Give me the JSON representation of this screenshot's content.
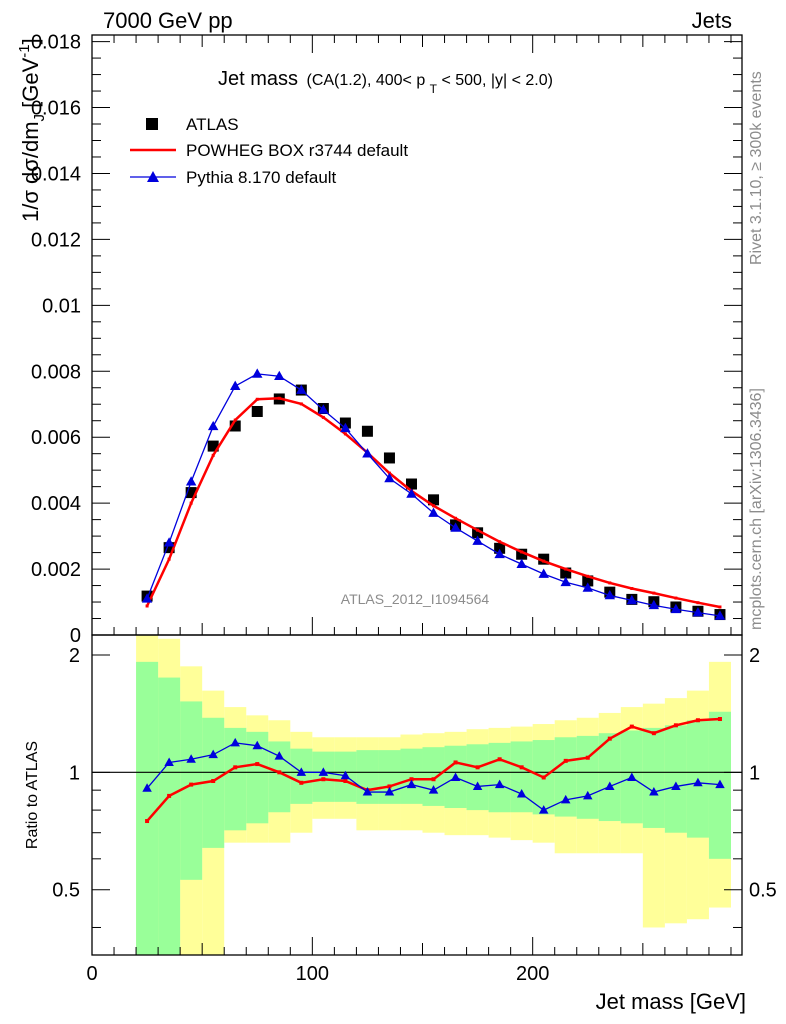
{
  "header": {
    "left": "7000 GeV pp",
    "right": "Jets",
    "title_main": "Jet mass",
    "title_detail": "(CA(1.2), 400< p",
    "title_sub": "T",
    "title_rest": " < 500, |y| < 2.0)"
  },
  "side_labels": {
    "rivet": "Rivet 3.1.10, ≥ 300k events",
    "mcplots": "mcplots.cern.ch [arXiv:1306.3436]"
  },
  "watermark": "ATLAS_2012_I1094564",
  "axes": {
    "ylabel_top": "1/σ dσ/dm",
    "ylabel_top_sub": "J",
    "ylabel_top_unit": " [GeV",
    "ylabel_top_sup": "-1",
    "ylabel_top_close": "]",
    "ylabel_bottom": "Ratio to ATLAS",
    "xlabel": "Jet mass [GeV]"
  },
  "chart_data": {
    "type": "line",
    "x": [
      25,
      35,
      45,
      55,
      65,
      75,
      85,
      95,
      105,
      115,
      125,
      135,
      145,
      155,
      165,
      175,
      185,
      195,
      205,
      215,
      225,
      235,
      245,
      255,
      265,
      275,
      285
    ],
    "xlim": [
      0,
      295
    ],
    "x_ticks": [
      0,
      100,
      200
    ],
    "ylim_top": [
      0,
      0.0182
    ],
    "y_ticks_top": [
      "0",
      "0.002",
      "0.004",
      "0.006",
      "0.008",
      "0.01",
      "0.012",
      "0.014",
      "0.016",
      "0.018"
    ],
    "ylim_ratio": [
      0.34,
      2.25
    ],
    "y_ticks_ratio": [
      "0.5",
      "1",
      "2"
    ],
    "series": [
      {
        "name": "ATLAS",
        "style": "markers",
        "marker": "square",
        "color": "#000000",
        "values": [
          0.00118,
          0.00265,
          0.00432,
          0.00573,
          0.00634,
          0.00678,
          0.00716,
          0.00743,
          0.00687,
          0.00643,
          0.00618,
          0.00537,
          0.00458,
          0.0041,
          0.00334,
          0.0031,
          0.00263,
          0.00245,
          0.0023,
          0.00188,
          0.00164,
          0.0013,
          0.00108,
          0.00101,
          0.00085,
          0.00072,
          0.00062
        ]
      },
      {
        "name": "POWHEG BOX r3744 default",
        "style": "line",
        "color": "#ff0000",
        "values": [
          0.00088,
          0.0023,
          0.004,
          0.00545,
          0.00652,
          0.00715,
          0.00718,
          0.00701,
          0.0066,
          0.0061,
          0.00553,
          0.00491,
          0.00437,
          0.00392,
          0.00354,
          0.00318,
          0.00283,
          0.00252,
          0.00224,
          0.002,
          0.00178,
          0.00158,
          0.00141,
          0.00127,
          0.00112,
          0.00098,
          0.00085
        ]
      },
      {
        "name": "Pythia 8.170 default",
        "style": "line+markers",
        "marker": "triangle",
        "color": "#0000dd",
        "values": [
          0.0011,
          0.0028,
          0.00465,
          0.00633,
          0.00755,
          0.00792,
          0.00785,
          0.00743,
          0.00683,
          0.00627,
          0.0055,
          0.00475,
          0.00428,
          0.0037,
          0.00325,
          0.00285,
          0.00245,
          0.00215,
          0.00185,
          0.0016,
          0.00143,
          0.0012,
          0.00105,
          0.0009,
          0.00078,
          0.00068,
          0.00058
        ]
      }
    ],
    "ratio": {
      "reference": 1,
      "band_green_upper": [
        1.92,
        1.75,
        1.52,
        1.38,
        1.3,
        1.27,
        1.2,
        1.15,
        1.13,
        1.13,
        1.14,
        1.14,
        1.15,
        1.16,
        1.17,
        1.18,
        1.19,
        1.2,
        1.21,
        1.23,
        1.24,
        1.26,
        1.28,
        1.3,
        1.32,
        1.36,
        1.43
      ],
      "band_green_lower": [
        0.3,
        0.3,
        0.53,
        0.64,
        0.71,
        0.74,
        0.79,
        0.83,
        0.84,
        0.84,
        0.83,
        0.83,
        0.83,
        0.82,
        0.81,
        0.8,
        0.79,
        0.79,
        0.78,
        0.77,
        0.76,
        0.75,
        0.74,
        0.72,
        0.7,
        0.68,
        0.6
      ],
      "band_yellow_upper": [
        2.35,
        2.2,
        1.87,
        1.62,
        1.47,
        1.4,
        1.36,
        1.27,
        1.23,
        1.23,
        1.23,
        1.23,
        1.25,
        1.26,
        1.27,
        1.29,
        1.3,
        1.31,
        1.33,
        1.36,
        1.38,
        1.42,
        1.47,
        1.5,
        1.55,
        1.62,
        1.92
      ],
      "band_yellow_lower": [
        0.3,
        0.3,
        0.3,
        0.3,
        0.66,
        0.66,
        0.66,
        0.7,
        0.76,
        0.76,
        0.71,
        0.71,
        0.71,
        0.7,
        0.69,
        0.69,
        0.68,
        0.67,
        0.66,
        0.62,
        0.62,
        0.62,
        0.62,
        0.4,
        0.41,
        0.42,
        0.45
      ],
      "series": [
        {
          "name": "POWHEG BOX r3744 default",
          "color": "#ff0000",
          "marker": "small-square",
          "values": [
            0.75,
            0.87,
            0.93,
            0.95,
            1.03,
            1.05,
            1.0,
            0.94,
            0.96,
            0.95,
            0.9,
            0.92,
            0.96,
            0.96,
            1.06,
            1.03,
            1.08,
            1.03,
            0.97,
            1.07,
            1.09,
            1.22,
            1.31,
            1.26,
            1.32,
            1.36,
            1.37
          ]
        },
        {
          "name": "Pythia 8.170 default",
          "color": "#0000dd",
          "marker": "triangle",
          "values": [
            0.91,
            1.06,
            1.08,
            1.11,
            1.19,
            1.17,
            1.1,
            1.0,
            1.0,
            0.98,
            0.89,
            0.89,
            0.93,
            0.9,
            0.97,
            0.92,
            0.93,
            0.88,
            0.8,
            0.85,
            0.87,
            0.92,
            0.97,
            0.89,
            0.92,
            0.94,
            0.93
          ]
        }
      ]
    }
  }
}
